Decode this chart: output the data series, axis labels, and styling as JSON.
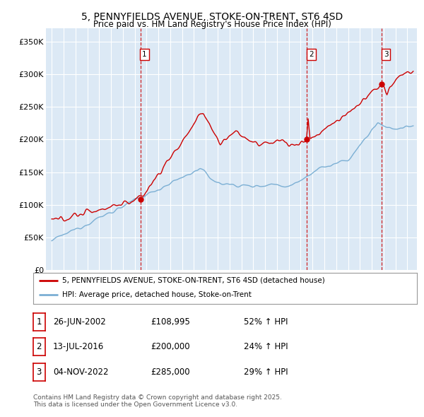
{
  "title": "5, PENNYFIELDS AVENUE, STOKE-ON-TRENT, ST6 4SD",
  "subtitle": "Price paid vs. HM Land Registry's House Price Index (HPI)",
  "bg_color": "#dce9f5",
  "red_color": "#cc0000",
  "blue_color": "#7bafd4",
  "sale_dates": [
    2002.48,
    2016.53,
    2022.84
  ],
  "sale_prices": [
    108995,
    200000,
    285000
  ],
  "sale_labels": [
    "1",
    "2",
    "3"
  ],
  "legend_red": "5, PENNYFIELDS AVENUE, STOKE-ON-TRENT, ST6 4SD (detached house)",
  "legend_blue": "HPI: Average price, detached house, Stoke-on-Trent",
  "table_rows": [
    [
      "1",
      "26-JUN-2002",
      "£108,995",
      "52% ↑ HPI"
    ],
    [
      "2",
      "13-JUL-2016",
      "£200,000",
      "24% ↑ HPI"
    ],
    [
      "3",
      "04-NOV-2022",
      "£285,000",
      "29% ↑ HPI"
    ]
  ],
  "footer": "Contains HM Land Registry data © Crown copyright and database right 2025.\nThis data is licensed under the Open Government Licence v3.0.",
  "ylim": [
    0,
    370000
  ],
  "yticks": [
    0,
    50000,
    100000,
    150000,
    200000,
    250000,
    300000,
    350000
  ],
  "ytick_labels": [
    "£0",
    "£50K",
    "£100K",
    "£150K",
    "£200K",
    "£250K",
    "£300K",
    "£350K"
  ],
  "xlim_start": 1994.5,
  "xlim_end": 2025.8
}
